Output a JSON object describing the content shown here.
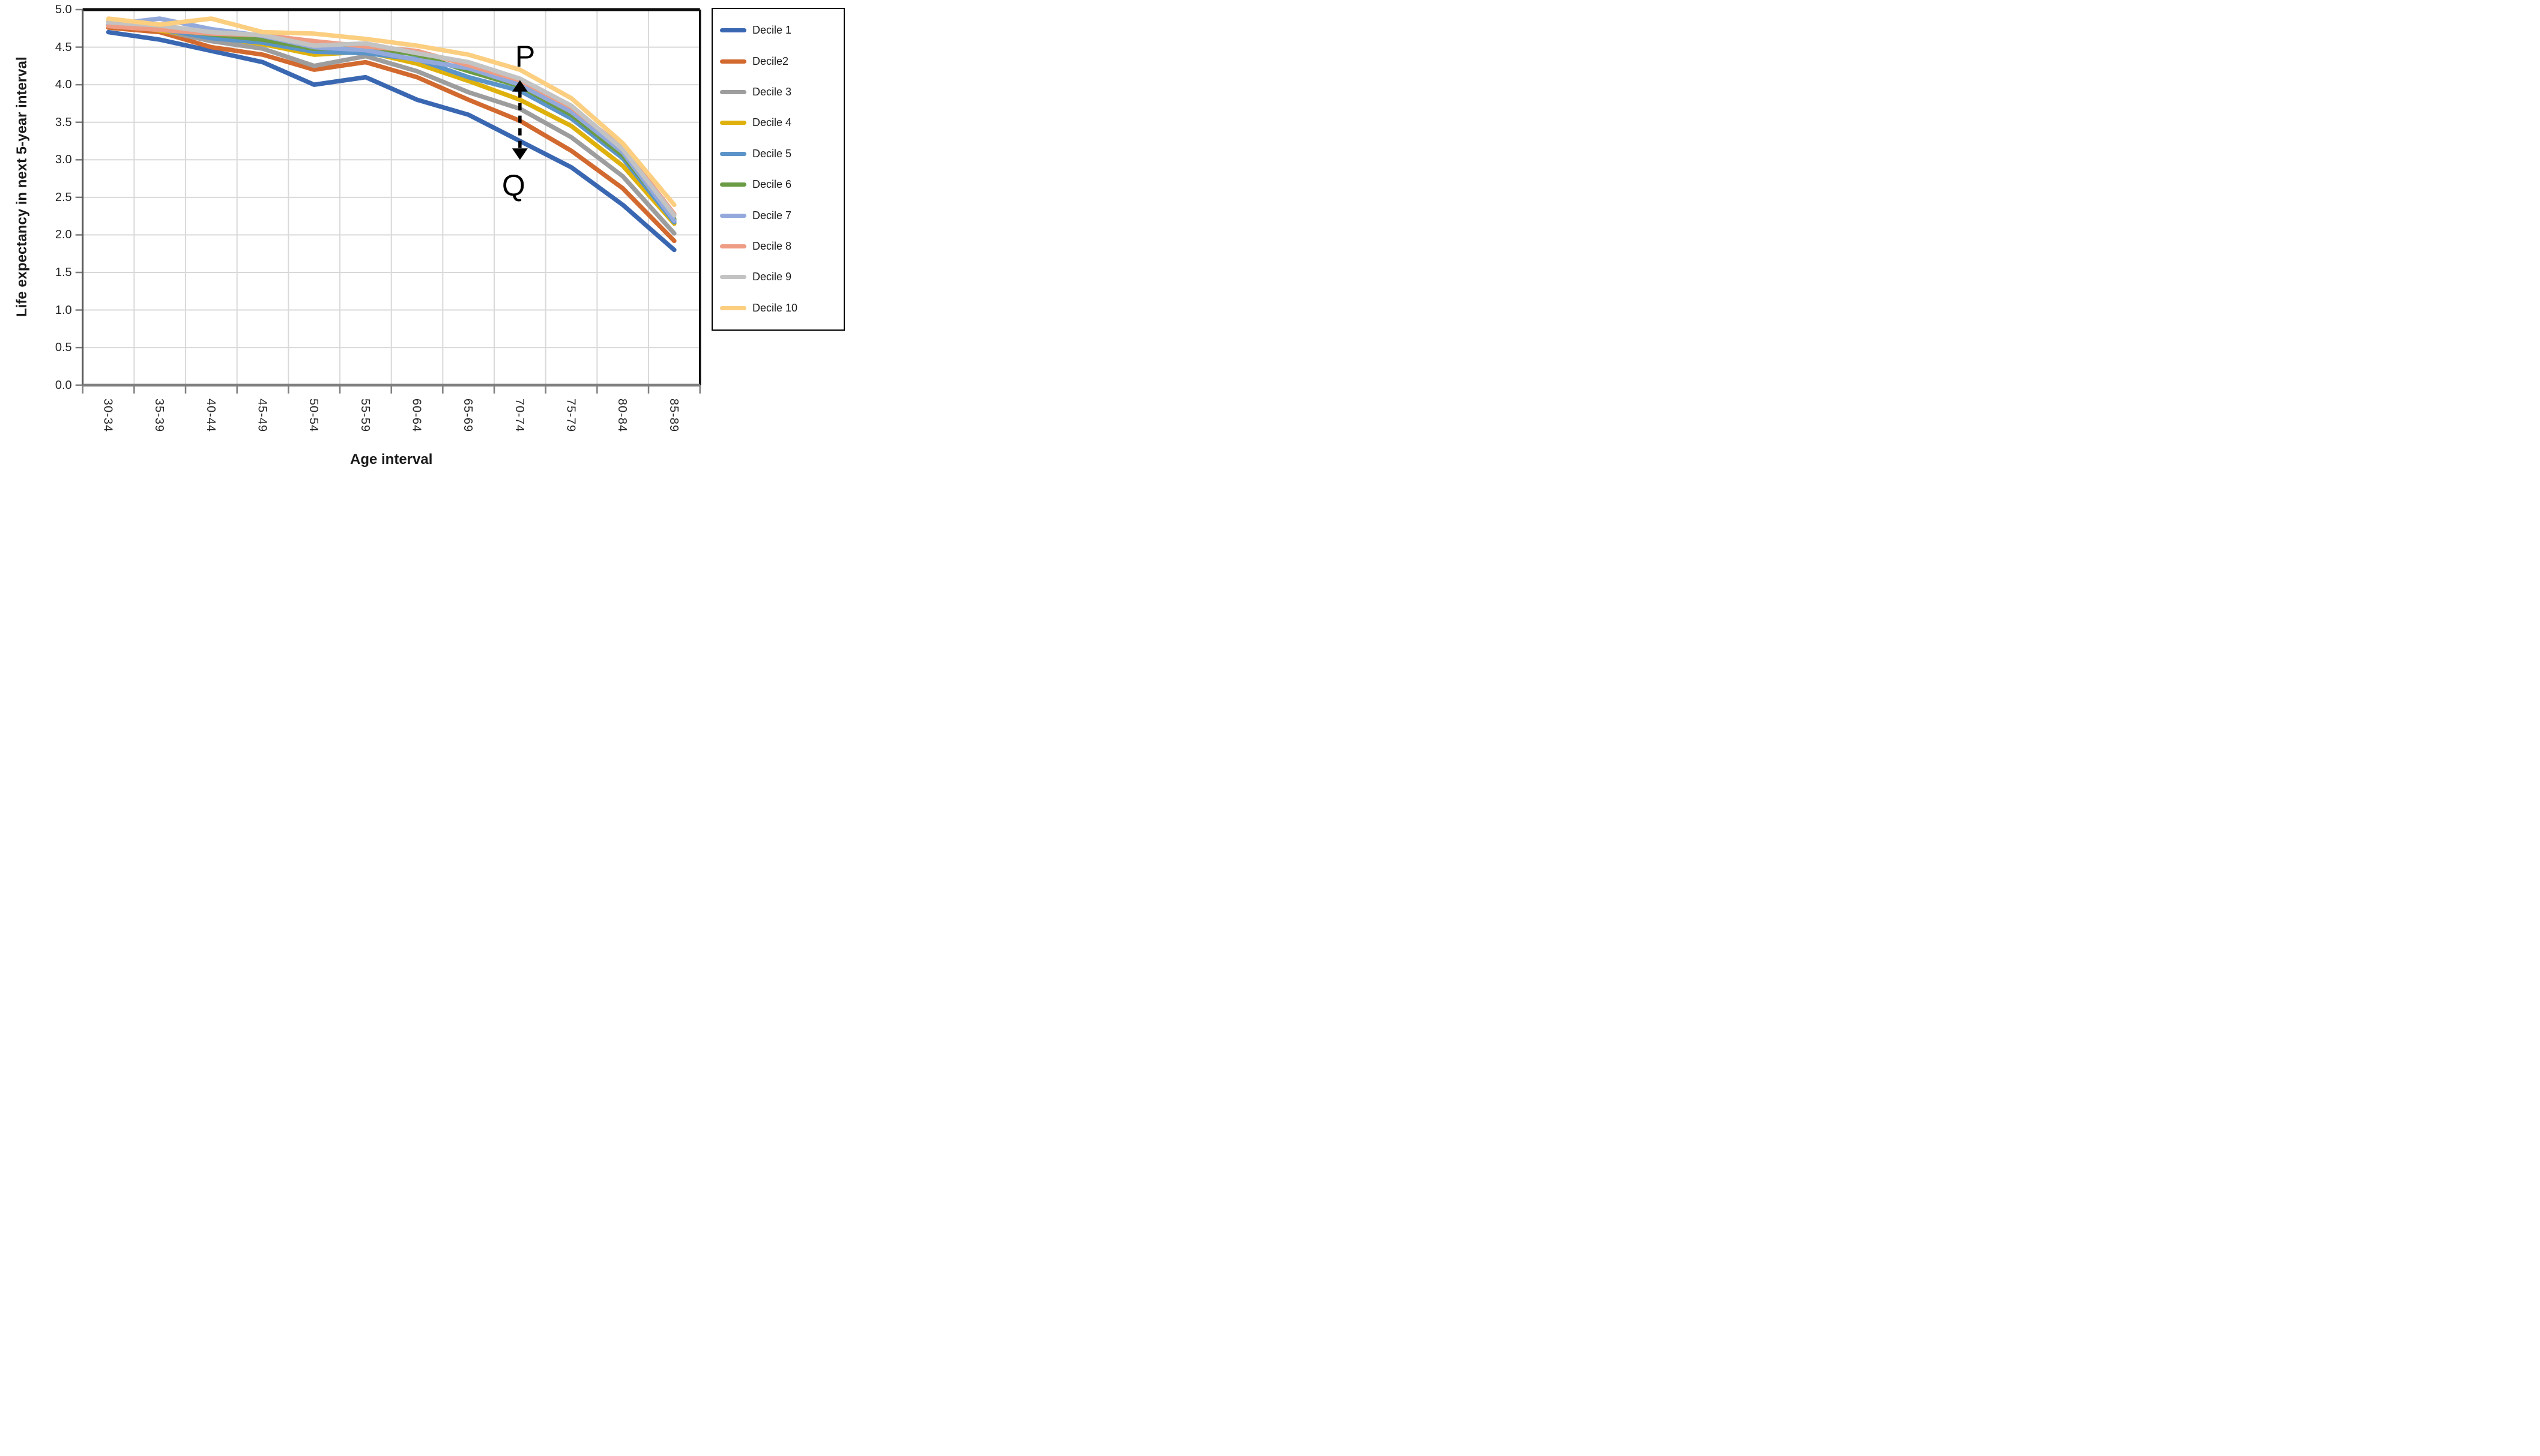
{
  "chart_data": {
    "type": "line",
    "title": "",
    "xlabel": "Age interval",
    "ylabel": "Life expectancy in next 5-year interval",
    "categories": [
      "30-34",
      "35-39",
      "40-44",
      "45-49",
      "50-54",
      "55-59",
      "60-64",
      "65-69",
      "70-74",
      "75-79",
      "80-84",
      "85-89"
    ],
    "series": [
      {
        "name": "Decile 1",
        "color": "#3A67B1",
        "values": [
          4.7,
          4.6,
          4.45,
          4.3,
          4.0,
          4.1,
          3.8,
          3.6,
          3.25,
          2.9,
          2.4,
          1.8
        ]
      },
      {
        "name": "Decile2",
        "color": "#D2692F",
        "values": [
          4.76,
          4.7,
          4.5,
          4.4,
          4.2,
          4.3,
          4.1,
          3.8,
          3.52,
          3.12,
          2.62,
          1.92
        ]
      },
      {
        "name": "Decile 3",
        "color": "#9D9D9D",
        "values": [
          4.79,
          4.73,
          4.58,
          4.48,
          4.25,
          4.38,
          4.18,
          3.9,
          3.68,
          3.3,
          2.78,
          2.02
        ]
      },
      {
        "name": "Decile 4",
        "color": "#DFB10C",
        "values": [
          4.84,
          4.72,
          4.64,
          4.54,
          4.4,
          4.44,
          4.28,
          4.05,
          3.8,
          3.45,
          2.92,
          2.15
        ]
      },
      {
        "name": "Decile 5",
        "color": "#5B94C9",
        "values": [
          4.79,
          4.74,
          4.62,
          4.56,
          4.44,
          4.42,
          4.34,
          4.1,
          3.92,
          3.55,
          3.02,
          2.17
        ]
      },
      {
        "name": "Decile 6",
        "color": "#6B9C45",
        "values": [
          4.78,
          4.74,
          4.67,
          4.6,
          4.48,
          4.5,
          4.4,
          4.18,
          3.98,
          3.6,
          3.06,
          2.21
        ]
      },
      {
        "name": "Decile 7",
        "color": "#93A9DC",
        "values": [
          4.8,
          4.88,
          4.74,
          4.65,
          4.5,
          4.46,
          4.33,
          4.22,
          4.0,
          3.64,
          3.1,
          2.19
        ]
      },
      {
        "name": "Decile 8",
        "color": "#EE9C84",
        "values": [
          4.78,
          4.73,
          4.68,
          4.66,
          4.58,
          4.51,
          4.45,
          4.26,
          4.06,
          3.7,
          3.16,
          2.28
        ]
      },
      {
        "name": "Decile 9",
        "color": "#C3C3C3",
        "values": [
          4.83,
          4.79,
          4.7,
          4.66,
          4.52,
          4.55,
          4.42,
          4.3,
          4.08,
          3.72,
          3.14,
          2.26
        ]
      },
      {
        "name": "Decile 10",
        "color": "#FBCE80",
        "values": [
          4.88,
          4.8,
          4.88,
          4.7,
          4.68,
          4.61,
          4.52,
          4.4,
          4.2,
          3.82,
          3.22,
          2.4
        ]
      }
    ],
    "ylim": [
      0,
      5
    ],
    "ytick_step": 0.5,
    "ytick_labels": [
      "0.0",
      "0.5",
      "1.0",
      "1.5",
      "2.0",
      "2.5",
      "3.0",
      "3.5",
      "4.0",
      "4.5",
      "5.0"
    ],
    "grid": true,
    "legend_position": "right",
    "annotations": {
      "p_label": "P",
      "q_label": "Q",
      "p_value": 4.38,
      "q_value": 2.66,
      "arrow_category": "70-74",
      "arrow_top_value": 4.06,
      "arrow_bottom_value": 3.0,
      "arrow_style": "dashed-double-headed-vertical"
    },
    "colors": {
      "gridline": "#D9D9D9",
      "plot_border_top": "#0d0d0d",
      "plot_border_right": "#0d0d0d",
      "axis_left": "#595959",
      "axis_bottom": "#7F7F7F",
      "tick": "#808080",
      "annotation": "#000000"
    }
  }
}
